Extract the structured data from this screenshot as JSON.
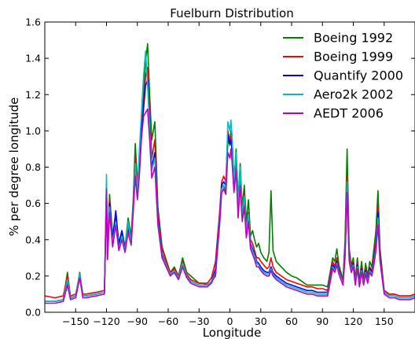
{
  "chart_data": {
    "type": "line",
    "title": "Fuelburn Distribution",
    "xlabel": "Longitude",
    "ylabel": "% per degree longitude",
    "xlim": [
      -180,
      180
    ],
    "ylim": [
      0.0,
      1.6
    ],
    "xticks": [
      -150,
      -120,
      -90,
      -60,
      -30,
      0,
      30,
      60,
      90,
      120,
      150
    ],
    "xtick_labels": [
      "−150",
      "−120",
      "−90",
      "−60",
      "−30",
      "0",
      "30",
      "60",
      "90",
      "120",
      "150"
    ],
    "yticks": [
      0.0,
      0.2,
      0.4,
      0.6,
      0.8,
      1.0,
      1.2,
      1.4,
      1.6
    ],
    "ytick_labels": [
      "0.0",
      "0.2",
      "0.4",
      "0.6",
      "0.8",
      "1.0",
      "1.2",
      "1.4",
      "1.6"
    ],
    "grid": false,
    "legend_position": "top-right",
    "series": [
      {
        "name": "Boeing 1992",
        "color": "#007f00",
        "x": [
          -180,
          -170,
          -162,
          -158,
          -155,
          -150,
          -146,
          -143,
          -140,
          -130,
          -122,
          -120,
          -119,
          -117,
          -114,
          -111,
          -108,
          -105,
          -102,
          -99,
          -96,
          -94,
          -92,
          -90,
          -88,
          -86,
          -84,
          -82,
          -80,
          -78,
          -76,
          -73,
          -70,
          -66,
          -62,
          -58,
          -54,
          -50,
          -46,
          -42,
          -38,
          -34,
          -30,
          -26,
          -22,
          -18,
          -14,
          -10,
          -8,
          -6,
          -4,
          -2,
          0,
          1,
          2,
          4,
          6,
          8,
          10,
          12,
          14,
          16,
          18,
          20,
          22,
          24,
          26,
          28,
          30,
          33,
          36,
          38,
          40,
          42,
          45,
          50,
          55,
          60,
          65,
          70,
          75,
          80,
          85,
          90,
          95,
          100,
          102,
          104,
          106,
          108,
          110,
          112,
          114,
          116,
          118,
          120,
          122,
          124,
          126,
          128,
          130,
          132,
          134,
          136,
          138,
          140,
          142,
          144,
          146,
          150,
          155,
          160,
          165,
          170,
          175,
          180
        ],
        "y": [
          0.06,
          0.06,
          0.07,
          0.22,
          0.08,
          0.09,
          0.22,
          0.09,
          0.09,
          0.1,
          0.11,
          0.65,
          0.35,
          0.65,
          0.42,
          0.55,
          0.38,
          0.45,
          0.36,
          0.52,
          0.42,
          0.62,
          0.93,
          0.72,
          0.82,
          1.0,
          1.2,
          1.38,
          1.48,
          1.2,
          0.95,
          1.05,
          0.58,
          0.36,
          0.29,
          0.22,
          0.25,
          0.2,
          0.3,
          0.22,
          0.2,
          0.18,
          0.16,
          0.16,
          0.15,
          0.17,
          0.2,
          0.5,
          0.68,
          0.7,
          0.65,
          0.95,
          0.92,
          1.0,
          0.98,
          0.72,
          0.9,
          0.62,
          0.82,
          0.58,
          0.7,
          0.5,
          0.62,
          0.42,
          0.45,
          0.4,
          0.36,
          0.38,
          0.33,
          0.3,
          0.28,
          0.33,
          0.67,
          0.34,
          0.28,
          0.25,
          0.22,
          0.2,
          0.19,
          0.17,
          0.15,
          0.15,
          0.15,
          0.15,
          0.14,
          0.3,
          0.28,
          0.35,
          0.26,
          0.22,
          0.18,
          0.4,
          0.9,
          0.35,
          0.26,
          0.3,
          0.18,
          0.3,
          0.17,
          0.28,
          0.18,
          0.27,
          0.2,
          0.28,
          0.25,
          0.35,
          0.45,
          0.67,
          0.35,
          0.12,
          0.1,
          0.1,
          0.09,
          0.09,
          0.09,
          0.1
        ]
      },
      {
        "name": "Boeing 1999",
        "color": "#ff0000",
        "x": [
          -180,
          -170,
          -162,
          -158,
          -155,
          -150,
          -146,
          -143,
          -140,
          -130,
          -122,
          -120,
          -119,
          -117,
          -114,
          -111,
          -108,
          -105,
          -102,
          -99,
          -96,
          -94,
          -92,
          -90,
          -88,
          -86,
          -84,
          -82,
          -80,
          -78,
          -76,
          -73,
          -70,
          -66,
          -62,
          -58,
          -54,
          -50,
          -46,
          -42,
          -38,
          -34,
          -30,
          -26,
          -22,
          -18,
          -14,
          -10,
          -8,
          -6,
          -4,
          -2,
          0,
          1,
          2,
          4,
          6,
          8,
          10,
          12,
          14,
          16,
          18,
          20,
          22,
          24,
          26,
          28,
          30,
          33,
          36,
          38,
          40,
          42,
          45,
          50,
          55,
          60,
          65,
          70,
          75,
          80,
          85,
          90,
          95,
          100,
          102,
          104,
          106,
          108,
          110,
          112,
          114,
          116,
          118,
          120,
          122,
          124,
          126,
          128,
          130,
          132,
          134,
          136,
          138,
          140,
          142,
          144,
          146,
          150,
          155,
          160,
          165,
          170,
          175,
          180
        ],
        "y": [
          0.09,
          0.08,
          0.09,
          0.2,
          0.09,
          0.1,
          0.21,
          0.1,
          0.1,
          0.11,
          0.12,
          0.68,
          0.33,
          0.62,
          0.4,
          0.52,
          0.36,
          0.44,
          0.35,
          0.48,
          0.4,
          0.6,
          0.85,
          0.7,
          0.8,
          0.98,
          1.15,
          1.3,
          1.35,
          1.1,
          0.85,
          0.95,
          0.55,
          0.35,
          0.28,
          0.22,
          0.24,
          0.2,
          0.28,
          0.21,
          0.18,
          0.17,
          0.16,
          0.16,
          0.16,
          0.19,
          0.28,
          0.55,
          0.72,
          0.75,
          0.72,
          1.0,
          0.95,
          0.97,
          0.9,
          0.72,
          0.85,
          0.58,
          0.78,
          0.55,
          0.65,
          0.45,
          0.55,
          0.4,
          0.38,
          0.34,
          0.3,
          0.3,
          0.28,
          0.26,
          0.24,
          0.25,
          0.3,
          0.25,
          0.22,
          0.2,
          0.18,
          0.17,
          0.16,
          0.15,
          0.14,
          0.14,
          0.13,
          0.13,
          0.12,
          0.28,
          0.25,
          0.3,
          0.24,
          0.2,
          0.17,
          0.35,
          0.75,
          0.32,
          0.24,
          0.28,
          0.17,
          0.27,
          0.16,
          0.25,
          0.17,
          0.24,
          0.18,
          0.25,
          0.23,
          0.3,
          0.4,
          0.58,
          0.32,
          0.12,
          0.1,
          0.1,
          0.09,
          0.09,
          0.09,
          0.1
        ]
      },
      {
        "name": "Quantify 2000",
        "color": "#0000ff",
        "x": [
          -180,
          -170,
          -162,
          -158,
          -155,
          -150,
          -146,
          -143,
          -140,
          -130,
          -122,
          -120,
          -119,
          -117,
          -114,
          -111,
          -108,
          -105,
          -102,
          -99,
          -96,
          -94,
          -92,
          -90,
          -88,
          -86,
          -84,
          -82,
          -80,
          -78,
          -76,
          -73,
          -70,
          -66,
          -62,
          -58,
          -54,
          -50,
          -46,
          -42,
          -38,
          -34,
          -30,
          -26,
          -22,
          -18,
          -14,
          -10,
          -8,
          -6,
          -4,
          -2,
          0,
          1,
          2,
          4,
          6,
          8,
          10,
          12,
          14,
          16,
          18,
          20,
          22,
          24,
          26,
          28,
          30,
          33,
          36,
          38,
          40,
          42,
          45,
          50,
          55,
          60,
          65,
          70,
          75,
          80,
          85,
          90,
          95,
          100,
          102,
          104,
          106,
          108,
          110,
          112,
          114,
          116,
          118,
          120,
          122,
          124,
          126,
          128,
          130,
          132,
          134,
          136,
          138,
          140,
          142,
          144,
          146,
          150,
          155,
          160,
          165,
          170,
          175,
          180
        ],
        "y": [
          0.06,
          0.06,
          0.07,
          0.17,
          0.08,
          0.09,
          0.2,
          0.09,
          0.09,
          0.1,
          0.11,
          0.7,
          0.32,
          0.6,
          0.4,
          0.56,
          0.37,
          0.45,
          0.35,
          0.46,
          0.39,
          0.58,
          0.8,
          0.68,
          0.78,
          1.0,
          1.12,
          1.25,
          1.28,
          1.05,
          0.8,
          0.88,
          0.52,
          0.32,
          0.26,
          0.21,
          0.23,
          0.19,
          0.26,
          0.2,
          0.17,
          0.16,
          0.15,
          0.15,
          0.15,
          0.17,
          0.24,
          0.52,
          0.7,
          0.72,
          0.7,
          0.98,
          0.93,
          0.95,
          0.9,
          0.7,
          0.83,
          0.56,
          0.76,
          0.52,
          0.62,
          0.43,
          0.52,
          0.38,
          0.35,
          0.32,
          0.28,
          0.27,
          0.25,
          0.23,
          0.22,
          0.22,
          0.25,
          0.22,
          0.2,
          0.18,
          0.16,
          0.15,
          0.14,
          0.13,
          0.12,
          0.12,
          0.11,
          0.11,
          0.11,
          0.26,
          0.24,
          0.28,
          0.23,
          0.19,
          0.16,
          0.33,
          0.7,
          0.3,
          0.23,
          0.27,
          0.16,
          0.26,
          0.15,
          0.24,
          0.16,
          0.23,
          0.17,
          0.24,
          0.22,
          0.28,
          0.38,
          0.55,
          0.3,
          0.11,
          0.09,
          0.09,
          0.08,
          0.08,
          0.08,
          0.09
        ]
      },
      {
        "name": "Aero2k 2002",
        "color": "#00bfbf",
        "x": [
          -180,
          -170,
          -162,
          -158,
          -155,
          -150,
          -146,
          -143,
          -140,
          -130,
          -122,
          -120,
          -119,
          -117,
          -114,
          -111,
          -108,
          -105,
          -102,
          -99,
          -96,
          -94,
          -92,
          -90,
          -88,
          -86,
          -84,
          -82,
          -80,
          -78,
          -76,
          -73,
          -70,
          -66,
          -62,
          -58,
          -54,
          -50,
          -46,
          -42,
          -38,
          -34,
          -30,
          -26,
          -22,
          -18,
          -14,
          -10,
          -8,
          -6,
          -4,
          -2,
          0,
          1,
          2,
          4,
          6,
          8,
          10,
          12,
          14,
          16,
          18,
          20,
          22,
          24,
          26,
          28,
          30,
          33,
          36,
          38,
          40,
          42,
          45,
          50,
          55,
          60,
          65,
          70,
          75,
          80,
          85,
          90,
          95,
          100,
          102,
          104,
          106,
          108,
          110,
          112,
          114,
          116,
          118,
          120,
          122,
          124,
          126,
          128,
          130,
          132,
          134,
          136,
          138,
          140,
          142,
          144,
          146,
          150,
          155,
          160,
          165,
          170,
          175,
          180
        ],
        "y": [
          0.06,
          0.06,
          0.07,
          0.18,
          0.08,
          0.09,
          0.21,
          0.09,
          0.09,
          0.1,
          0.11,
          0.76,
          0.3,
          0.58,
          0.38,
          0.5,
          0.35,
          0.42,
          0.34,
          0.5,
          0.38,
          0.58,
          0.82,
          0.66,
          0.9,
          1.1,
          1.3,
          1.44,
          1.25,
          1.02,
          0.78,
          0.85,
          0.5,
          0.31,
          0.26,
          0.21,
          0.23,
          0.19,
          0.27,
          0.2,
          0.17,
          0.16,
          0.15,
          0.15,
          0.15,
          0.17,
          0.22,
          0.5,
          0.68,
          0.7,
          0.68,
          1.05,
          1.0,
          1.06,
          0.98,
          0.72,
          0.88,
          0.58,
          0.8,
          0.54,
          0.64,
          0.44,
          0.54,
          0.37,
          0.34,
          0.31,
          0.27,
          0.26,
          0.24,
          0.22,
          0.21,
          0.21,
          0.24,
          0.21,
          0.19,
          0.17,
          0.15,
          0.14,
          0.13,
          0.12,
          0.11,
          0.11,
          0.1,
          0.1,
          0.1,
          0.25,
          0.23,
          0.27,
          0.22,
          0.19,
          0.16,
          0.32,
          0.72,
          0.3,
          0.23,
          0.26,
          0.16,
          0.25,
          0.15,
          0.23,
          0.16,
          0.22,
          0.17,
          0.23,
          0.21,
          0.27,
          0.36,
          0.52,
          0.29,
          0.11,
          0.09,
          0.09,
          0.08,
          0.08,
          0.08,
          0.09
        ]
      },
      {
        "name": "AEDT 2006",
        "color": "#bf00bf",
        "x": [
          -180,
          -170,
          -162,
          -158,
          -155,
          -150,
          -146,
          -143,
          -140,
          -130,
          -122,
          -120,
          -119,
          -117,
          -114,
          -111,
          -108,
          -105,
          -102,
          -99,
          -96,
          -94,
          -92,
          -90,
          -88,
          -86,
          -84,
          -82,
          -80,
          -78,
          -76,
          -73,
          -70,
          -66,
          -62,
          -58,
          -54,
          -50,
          -46,
          -42,
          -38,
          -34,
          -30,
          -26,
          -22,
          -18,
          -14,
          -10,
          -8,
          -6,
          -4,
          -2,
          0,
          1,
          2,
          4,
          6,
          8,
          10,
          12,
          14,
          16,
          18,
          20,
          22,
          24,
          26,
          28,
          30,
          33,
          36,
          38,
          40,
          42,
          45,
          50,
          55,
          60,
          65,
          70,
          75,
          80,
          85,
          90,
          95,
          100,
          102,
          104,
          106,
          108,
          110,
          112,
          114,
          116,
          118,
          120,
          122,
          124,
          126,
          128,
          130,
          132,
          134,
          136,
          138,
          140,
          142,
          144,
          146,
          150,
          155,
          160,
          165,
          170,
          175,
          180
        ],
        "y": [
          0.05,
          0.05,
          0.06,
          0.15,
          0.07,
          0.08,
          0.19,
          0.08,
          0.08,
          0.09,
          0.1,
          0.68,
          0.29,
          0.55,
          0.36,
          0.48,
          0.34,
          0.4,
          0.33,
          0.44,
          0.37,
          0.55,
          0.75,
          0.62,
          0.76,
          0.96,
          1.08,
          1.1,
          1.12,
          0.95,
          0.74,
          0.8,
          0.48,
          0.3,
          0.25,
          0.2,
          0.22,
          0.18,
          0.25,
          0.19,
          0.16,
          0.15,
          0.14,
          0.14,
          0.14,
          0.16,
          0.21,
          0.48,
          0.66,
          0.68,
          0.65,
          0.88,
          0.85,
          0.9,
          0.84,
          0.66,
          0.78,
          0.52,
          0.7,
          0.5,
          0.58,
          0.41,
          0.5,
          0.35,
          0.32,
          0.29,
          0.25,
          0.25,
          0.23,
          0.21,
          0.2,
          0.2,
          0.23,
          0.2,
          0.18,
          0.16,
          0.14,
          0.13,
          0.12,
          0.11,
          0.1,
          0.1,
          0.09,
          0.09,
          0.09,
          0.24,
          0.22,
          0.26,
          0.21,
          0.18,
          0.15,
          0.3,
          0.66,
          0.28,
          0.22,
          0.25,
          0.15,
          0.24,
          0.14,
          0.22,
          0.15,
          0.21,
          0.16,
          0.22,
          0.2,
          0.26,
          0.34,
          0.48,
          0.28,
          0.1,
          0.08,
          0.08,
          0.07,
          0.07,
          0.07,
          0.08
        ]
      }
    ]
  }
}
